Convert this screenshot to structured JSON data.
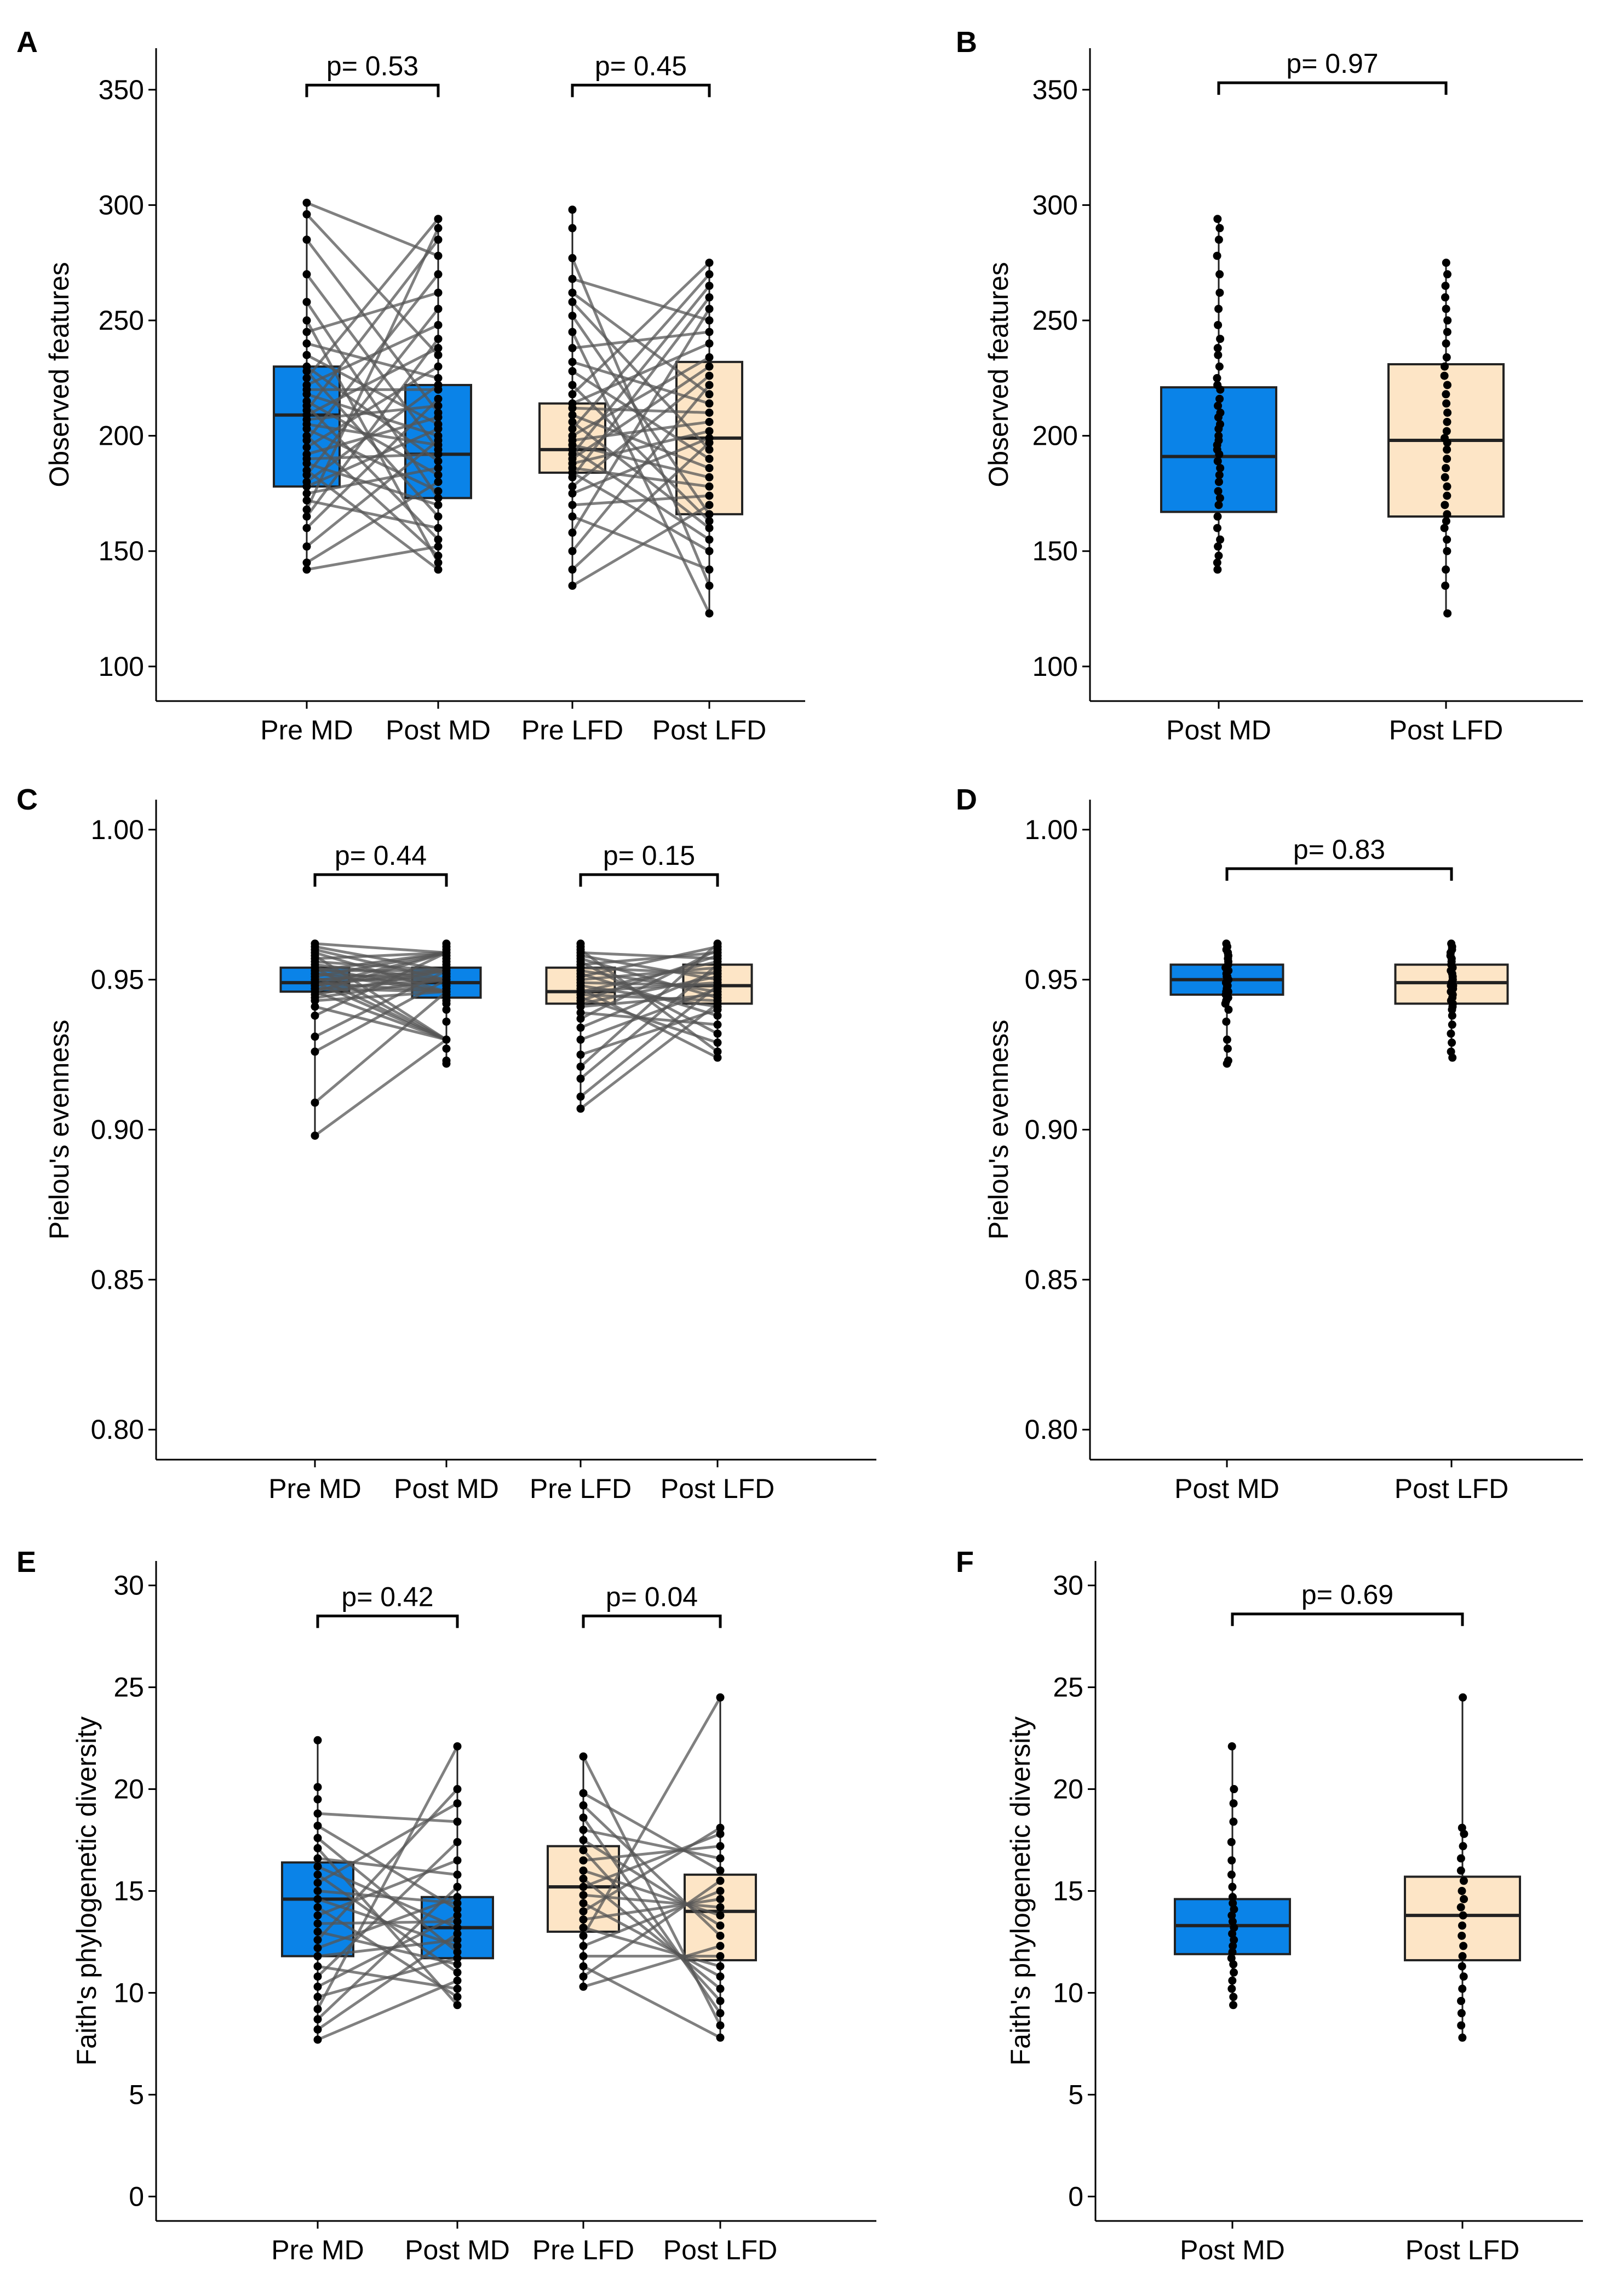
{
  "figure": {
    "colors": {
      "md": "#0a83e8",
      "lfd": "#fde5c6",
      "edge": "#222222",
      "point": "#000000",
      "line": "#555555"
    }
  },
  "chart_data": [
    {
      "panel": "A",
      "type": "box",
      "paired": true,
      "ylabel": "Observed features",
      "ylim": [
        85,
        368
      ],
      "yticks": [
        100,
        150,
        200,
        250,
        300,
        350
      ],
      "categories": [
        "Pre MD",
        "Post MD",
        "Pre LFD",
        "Post LFD"
      ],
      "boxes": [
        {
          "q1": 178,
          "median": 209,
          "q3": 230,
          "min": 142,
          "max": 301,
          "group": "md"
        },
        {
          "q1": 173,
          "median": 192,
          "q3": 222,
          "min": 142,
          "max": 294,
          "group": "md"
        },
        {
          "q1": 184,
          "median": 194,
          "q3": 214,
          "min": 135,
          "max": 298,
          "group": "lfd"
        },
        {
          "q1": 166,
          "median": 199,
          "q3": 232,
          "min": 123,
          "max": 275,
          "group": "lfd"
        }
      ],
      "points": [
        [
          142,
          145,
          152,
          160,
          165,
          168,
          172,
          175,
          178,
          180,
          183,
          185,
          188,
          190,
          192,
          195,
          198,
          200,
          203,
          205,
          207,
          209,
          211,
          213,
          215,
          218,
          220,
          222,
          225,
          228,
          230,
          235,
          240,
          245,
          250,
          258,
          270,
          285,
          296,
          301
        ],
        [
          142,
          145,
          148,
          152,
          155,
          160,
          165,
          170,
          173,
          176,
          180,
          183,
          186,
          189,
          192,
          194,
          196,
          198,
          200,
          203,
          205,
          208,
          210,
          213,
          216,
          220,
          222,
          225,
          230,
          235,
          238,
          242,
          248,
          255,
          262,
          270,
          278,
          285,
          290,
          294
        ],
        [
          135,
          142,
          150,
          158,
          165,
          170,
          175,
          178,
          182,
          184,
          186,
          188,
          190,
          192,
          194,
          196,
          198,
          200,
          203,
          206,
          209,
          212,
          214,
          218,
          222,
          228,
          232,
          238,
          245,
          252,
          258,
          262,
          268,
          277,
          290,
          298
        ],
        [
          123,
          135,
          142,
          150,
          155,
          160,
          163,
          166,
          170,
          174,
          178,
          182,
          186,
          190,
          194,
          197,
          199,
          202,
          206,
          210,
          214,
          218,
          222,
          226,
          230,
          234,
          240,
          245,
          250,
          255,
          260,
          265,
          270,
          275
        ]
      ],
      "tests": [
        {
          "pair": [
            0,
            1
          ],
          "label": "p= 0.53",
          "y": 352
        },
        {
          "pair": [
            2,
            3
          ],
          "label": "p= 0.45",
          "y": 352
        }
      ]
    },
    {
      "panel": "B",
      "type": "box",
      "paired": false,
      "ylabel": "Observed features",
      "ylim": [
        85,
        368
      ],
      "yticks": [
        100,
        150,
        200,
        250,
        300,
        350
      ],
      "categories": [
        "Post MD",
        "Post LFD"
      ],
      "boxes": [
        {
          "q1": 167,
          "median": 191,
          "q3": 221,
          "min": 142,
          "max": 294,
          "group": "md"
        },
        {
          "q1": 165,
          "median": 198,
          "q3": 231,
          "min": 123,
          "max": 275,
          "group": "lfd"
        }
      ],
      "points": [
        [
          142,
          145,
          148,
          152,
          155,
          160,
          165,
          170,
          173,
          176,
          180,
          183,
          186,
          189,
          192,
          194,
          196,
          198,
          200,
          203,
          205,
          208,
          210,
          213,
          216,
          220,
          222,
          225,
          230,
          235,
          238,
          242,
          248,
          255,
          262,
          270,
          278,
          285,
          290,
          294
        ],
        [
          123,
          135,
          142,
          150,
          155,
          160,
          163,
          166,
          170,
          174,
          178,
          182,
          186,
          190,
          194,
          197,
          199,
          202,
          206,
          210,
          214,
          218,
          222,
          226,
          230,
          234,
          240,
          245,
          250,
          255,
          260,
          265,
          270,
          275
        ]
      ],
      "tests": [
        {
          "pair": [
            0,
            1
          ],
          "label": "p= 0.97",
          "y": 353
        }
      ]
    },
    {
      "panel": "C",
      "type": "box",
      "paired": true,
      "ylabel": "Pielou's evenness",
      "ylim": [
        0.79,
        1.01
      ],
      "yticks": [
        0.8,
        0.85,
        0.9,
        0.95,
        1.0
      ],
      "categories": [
        "Pre MD",
        "Post MD",
        "Pre LFD",
        "Post LFD"
      ],
      "boxes": [
        {
          "q1": 0.946,
          "median": 0.949,
          "q3": 0.954,
          "min": 0.898,
          "max": 0.962,
          "group": "md"
        },
        {
          "q1": 0.944,
          "median": 0.949,
          "q3": 0.954,
          "min": 0.922,
          "max": 0.962,
          "group": "md"
        },
        {
          "q1": 0.942,
          "median": 0.946,
          "q3": 0.954,
          "min": 0.907,
          "max": 0.962,
          "group": "lfd"
        },
        {
          "q1": 0.942,
          "median": 0.948,
          "q3": 0.955,
          "min": 0.924,
          "max": 0.962,
          "group": "lfd"
        }
      ],
      "points": [
        [
          0.898,
          0.909,
          0.926,
          0.931,
          0.938,
          0.941,
          0.943,
          0.944,
          0.945,
          0.946,
          0.946,
          0.947,
          0.947,
          0.948,
          0.948,
          0.949,
          0.949,
          0.95,
          0.95,
          0.951,
          0.951,
          0.952,
          0.952,
          0.953,
          0.953,
          0.954,
          0.954,
          0.955,
          0.956,
          0.957,
          0.958,
          0.959,
          0.96,
          0.961,
          0.962
        ],
        [
          0.922,
          0.923,
          0.927,
          0.93,
          0.936,
          0.94,
          0.942,
          0.943,
          0.944,
          0.945,
          0.946,
          0.946,
          0.947,
          0.948,
          0.948,
          0.949,
          0.949,
          0.95,
          0.95,
          0.951,
          0.951,
          0.952,
          0.952,
          0.953,
          0.953,
          0.954,
          0.954,
          0.955,
          0.956,
          0.957,
          0.958,
          0.959,
          0.96,
          0.961,
          0.962
        ],
        [
          0.907,
          0.911,
          0.917,
          0.921,
          0.925,
          0.93,
          0.934,
          0.937,
          0.939,
          0.941,
          0.942,
          0.943,
          0.944,
          0.945,
          0.946,
          0.946,
          0.947,
          0.948,
          0.949,
          0.95,
          0.951,
          0.952,
          0.953,
          0.954,
          0.955,
          0.956,
          0.957,
          0.958,
          0.959,
          0.96,
          0.961,
          0.962
        ],
        [
          0.924,
          0.926,
          0.929,
          0.932,
          0.935,
          0.938,
          0.94,
          0.941,
          0.942,
          0.943,
          0.944,
          0.945,
          0.946,
          0.947,
          0.948,
          0.948,
          0.949,
          0.95,
          0.951,
          0.952,
          0.953,
          0.954,
          0.955,
          0.956,
          0.957,
          0.958,
          0.959,
          0.96,
          0.961,
          0.962
        ]
      ],
      "tests": [
        {
          "pair": [
            0,
            1
          ],
          "label": "p= 0.44",
          "y": 0.985
        },
        {
          "pair": [
            2,
            3
          ],
          "label": "p= 0.15",
          "y": 0.985
        }
      ]
    },
    {
      "panel": "D",
      "type": "box",
      "paired": false,
      "ylabel": "Pielou's evenness",
      "ylim": [
        0.79,
        1.01
      ],
      "yticks": [
        0.8,
        0.85,
        0.9,
        0.95,
        1.0
      ],
      "categories": [
        "Post MD",
        "Post LFD"
      ],
      "boxes": [
        {
          "q1": 0.945,
          "median": 0.95,
          "q3": 0.955,
          "min": 0.922,
          "max": 0.962,
          "group": "md"
        },
        {
          "q1": 0.942,
          "median": 0.949,
          "q3": 0.955,
          "min": 0.924,
          "max": 0.962,
          "group": "lfd"
        }
      ],
      "points": [
        [
          0.922,
          0.923,
          0.927,
          0.93,
          0.936,
          0.94,
          0.942,
          0.943,
          0.944,
          0.945,
          0.946,
          0.946,
          0.947,
          0.948,
          0.948,
          0.949,
          0.949,
          0.95,
          0.95,
          0.951,
          0.951,
          0.952,
          0.952,
          0.953,
          0.953,
          0.954,
          0.954,
          0.955,
          0.956,
          0.957,
          0.958,
          0.959,
          0.96,
          0.961,
          0.962
        ],
        [
          0.924,
          0.926,
          0.929,
          0.932,
          0.935,
          0.938,
          0.94,
          0.941,
          0.942,
          0.943,
          0.944,
          0.945,
          0.946,
          0.947,
          0.948,
          0.948,
          0.949,
          0.95,
          0.951,
          0.952,
          0.953,
          0.954,
          0.955,
          0.956,
          0.957,
          0.958,
          0.959,
          0.96,
          0.961,
          0.962
        ]
      ],
      "tests": [
        {
          "pair": [
            0,
            1
          ],
          "label": "p= 0.83",
          "y": 0.987
        }
      ]
    },
    {
      "panel": "E",
      "type": "box",
      "paired": true,
      "ylabel": "Faith's phylogenetic diversity",
      "ylim": [
        -1.2,
        31.2
      ],
      "yticks": [
        0,
        5,
        10,
        15,
        20,
        25,
        30
      ],
      "categories": [
        "Pre MD",
        "Post MD",
        "Pre LFD",
        "Post LFD"
      ],
      "boxes": [
        {
          "q1": 11.8,
          "median": 14.6,
          "q3": 16.4,
          "min": 7.7,
          "max": 22.4,
          "group": "md"
        },
        {
          "q1": 11.7,
          "median": 13.2,
          "q3": 14.7,
          "min": 9.4,
          "max": 22.1,
          "group": "md"
        },
        {
          "q1": 13.0,
          "median": 15.2,
          "q3": 17.2,
          "min": 10.3,
          "max": 21.6,
          "group": "lfd"
        },
        {
          "q1": 11.6,
          "median": 14.0,
          "q3": 15.8,
          "min": 7.8,
          "max": 24.5,
          "group": "lfd"
        }
      ],
      "points": [
        [
          7.7,
          8.2,
          8.7,
          9.2,
          9.8,
          10.3,
          10.8,
          11.3,
          11.8,
          12.2,
          12.6,
          13.0,
          13.4,
          13.8,
          14.2,
          14.6,
          15.0,
          15.4,
          15.8,
          16.2,
          16.6,
          17.1,
          17.6,
          18.2,
          18.8,
          19.5,
          20.1,
          22.4
        ],
        [
          9.4,
          9.8,
          10.2,
          10.6,
          11.0,
          11.4,
          11.7,
          12.0,
          12.3,
          12.6,
          12.9,
          13.2,
          13.5,
          13.8,
          14.1,
          14.4,
          14.7,
          15.2,
          15.8,
          16.5,
          17.4,
          18.4,
          19.3,
          20.0,
          22.1
        ],
        [
          10.3,
          10.8,
          11.3,
          11.8,
          12.3,
          12.8,
          13.2,
          13.6,
          14.0,
          14.4,
          14.8,
          15.2,
          15.6,
          16.0,
          16.5,
          17.0,
          17.5,
          18.0,
          18.6,
          19.2,
          19.8,
          21.6
        ],
        [
          7.8,
          8.4,
          9.0,
          9.6,
          10.2,
          10.8,
          11.3,
          11.8,
          12.3,
          12.8,
          13.3,
          13.8,
          14.2,
          14.6,
          15.0,
          15.5,
          16.0,
          16.6,
          17.2,
          17.8,
          18.1,
          24.5
        ]
      ],
      "tests": [
        {
          "pair": [
            0,
            1
          ],
          "label": "p= 0.42",
          "y": 28.5
        },
        {
          "pair": [
            2,
            3
          ],
          "label": "p= 0.04",
          "y": 28.5
        }
      ]
    },
    {
      "panel": "F",
      "type": "box",
      "paired": false,
      "ylabel": "Faith's phylogenetic diversity",
      "ylim": [
        -1.2,
        31.2
      ],
      "yticks": [
        0,
        5,
        10,
        15,
        20,
        25,
        30
      ],
      "categories": [
        "Post MD",
        "Post LFD"
      ],
      "boxes": [
        {
          "q1": 11.9,
          "median": 13.3,
          "q3": 14.6,
          "min": 9.4,
          "max": 22.1,
          "group": "md"
        },
        {
          "q1": 11.6,
          "median": 13.8,
          "q3": 15.7,
          "min": 7.8,
          "max": 24.5,
          "group": "lfd"
        }
      ],
      "points": [
        [
          9.4,
          9.8,
          10.2,
          10.6,
          11.0,
          11.4,
          11.7,
          12.0,
          12.3,
          12.6,
          12.9,
          13.2,
          13.5,
          13.8,
          14.1,
          14.4,
          14.7,
          15.2,
          15.8,
          16.5,
          17.4,
          18.4,
          19.3,
          20.0,
          22.1
        ],
        [
          7.8,
          8.4,
          9.0,
          9.6,
          10.2,
          10.8,
          11.3,
          11.8,
          12.3,
          12.8,
          13.3,
          13.8,
          14.2,
          14.6,
          15.0,
          15.5,
          16.0,
          16.6,
          17.2,
          17.8,
          18.1,
          24.5
        ]
      ],
      "tests": [
        {
          "pair": [
            0,
            1
          ],
          "label": "p= 0.69",
          "y": 28.6
        }
      ]
    }
  ]
}
